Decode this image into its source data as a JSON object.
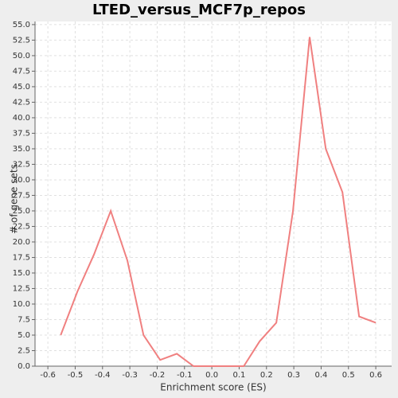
{
  "chart_data": {
    "type": "line",
    "title": "LTED_versus_MCF7p_repos",
    "xlabel": "Enrichment score (ES)",
    "ylabel": "# of gene sets",
    "x": [
      -0.553,
      -0.492,
      -0.431,
      -0.37,
      -0.309,
      -0.25,
      -0.189,
      -0.128,
      -0.067,
      -0.006,
      0.055,
      0.117,
      0.175,
      0.236,
      0.297,
      0.358,
      0.417,
      0.478,
      0.539,
      0.6
    ],
    "series": [
      {
        "name": "LTED_versus_MCF7p_repos",
        "color": "#f08080",
        "values": [
          5,
          12,
          18,
          25,
          17,
          5,
          1,
          2,
          0,
          0,
          0,
          0,
          4,
          7,
          25,
          53,
          35,
          28,
          8,
          7
        ]
      }
    ],
    "xlim": [
      -0.647,
      0.658
    ],
    "ylim": [
      0,
      55.5
    ],
    "xticks": [
      {
        "value": -0.6,
        "label": "-0.6"
      },
      {
        "value": -0.5,
        "label": "-0.5"
      },
      {
        "value": -0.4,
        "label": "-0.4"
      },
      {
        "value": -0.3,
        "label": "-0.3"
      },
      {
        "value": -0.2,
        "label": "-0.2"
      },
      {
        "value": -0.1,
        "label": "-0.1"
      },
      {
        "value": 0,
        "label": "0.0"
      },
      {
        "value": 0.1,
        "label": "0.1"
      },
      {
        "value": 0.2,
        "label": "0.2"
      },
      {
        "value": 0.3,
        "label": "0.3"
      },
      {
        "value": 0.4,
        "label": "0.4"
      },
      {
        "value": 0.5,
        "label": "0.5"
      },
      {
        "value": 0.6,
        "label": "0.6"
      }
    ],
    "yticks": [
      {
        "value": 0,
        "label": "0.0"
      },
      {
        "value": 2.5,
        "label": "2.5"
      },
      {
        "value": 5,
        "label": "5.0"
      },
      {
        "value": 7.5,
        "label": "7.5"
      },
      {
        "value": 10,
        "label": "10.0"
      },
      {
        "value": 12.5,
        "label": "12.5"
      },
      {
        "value": 15,
        "label": "15.0"
      },
      {
        "value": 17.5,
        "label": "17.5"
      },
      {
        "value": 20,
        "label": "20.0"
      },
      {
        "value": 22.5,
        "label": "22.5"
      },
      {
        "value": 25,
        "label": "25.0"
      },
      {
        "value": 27.5,
        "label": "27.5"
      },
      {
        "value": 30,
        "label": "30.0"
      },
      {
        "value": 32.5,
        "label": "32.5"
      },
      {
        "value": 35,
        "label": "35.0"
      },
      {
        "value": 37.5,
        "label": "37.5"
      },
      {
        "value": 40,
        "label": "40.0"
      },
      {
        "value": 42.5,
        "label": "42.5"
      },
      {
        "value": 45,
        "label": "45.0"
      },
      {
        "value": 47.5,
        "label": "47.5"
      },
      {
        "value": 50,
        "label": "50.0"
      },
      {
        "value": 52.5,
        "label": "52.5"
      },
      {
        "value": 55,
        "label": "55.0"
      }
    ],
    "grid": true
  }
}
